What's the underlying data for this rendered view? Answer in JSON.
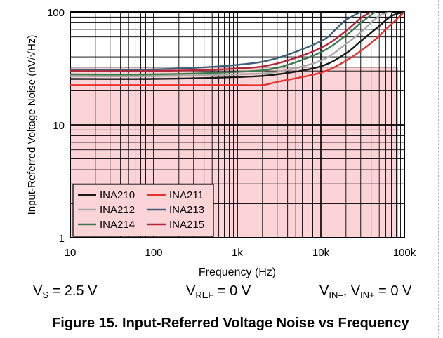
{
  "chart_data": {
    "type": "line",
    "title": "",
    "xlabel": "Frequency (Hz)",
    "ylabel": "Input-Referred Voltage Noise (nV/√Hz)",
    "xscale": "log",
    "yscale": "log",
    "xlim": [
      10,
      100000
    ],
    "ylim": [
      1,
      100
    ],
    "x_ticks": [
      {
        "value": 10,
        "label": "10"
      },
      {
        "value": 100,
        "label": "100"
      },
      {
        "value": 1000,
        "label": "1k"
      },
      {
        "value": 10000,
        "label": "10k"
      },
      {
        "value": 100000,
        "label": "100k"
      }
    ],
    "y_ticks": [
      {
        "value": 1,
        "label": "1"
      },
      {
        "value": 10,
        "label": "10"
      },
      {
        "value": 100,
        "label": "100"
      }
    ],
    "grid": true,
    "legend_position": "bottom-left",
    "series": [
      {
        "name": "INA210",
        "color": "#1a1a1a",
        "x": [
          10,
          100,
          1000,
          3000,
          10000,
          20000,
          30000,
          50000,
          70000,
          100000
        ],
        "y": [
          25.5,
          25.5,
          26.5,
          28,
          33,
          43,
          55,
          75,
          92,
          100
        ]
      },
      {
        "name": "INA211",
        "color": "#e8322e",
        "x": [
          10,
          100,
          1000,
          2000,
          3000,
          10000,
          20000,
          40000,
          60000,
          100000
        ],
        "y": [
          22.5,
          22.5,
          22.5,
          22.5,
          24,
          29,
          37,
          53,
          70,
          100
        ]
      },
      {
        "name": "INA212",
        "color": "#a8a8a8",
        "x": [
          10,
          100,
          1000,
          3000,
          10000,
          20000,
          30000,
          50000,
          70000
        ],
        "y": [
          27,
          27,
          28,
          29.5,
          37,
          52,
          66,
          92,
          100
        ]
      },
      {
        "name": "INA213",
        "color": "#3d6078",
        "x": [
          10,
          100,
          1000,
          3000,
          10000,
          15000,
          20000,
          30000
        ],
        "y": [
          31,
          31,
          34,
          39,
          55,
          70,
          85,
          100
        ]
      },
      {
        "name": "INA214",
        "color": "#3c7a4c",
        "x": [
          10,
          100,
          1000,
          3000,
          10000,
          20000,
          30000,
          45000
        ],
        "y": [
          28,
          28,
          29.5,
          32,
          44,
          62,
          80,
          100
        ]
      },
      {
        "name": "INA215",
        "color": "#b5263a",
        "x": [
          10,
          100,
          1000,
          3000,
          10000,
          20000,
          30000,
          40000
        ],
        "y": [
          30,
          30,
          31.5,
          35,
          48,
          68,
          88,
          100
        ]
      }
    ]
  },
  "conditions": {
    "vs_main": "V",
    "vs_sub": "S",
    "vs_rest": " = 2.5 V",
    "vref_main": "V",
    "vref_sub": "REF",
    "vref_rest": " = 0 V",
    "vin_a_main": "V",
    "vin_a_sub": "IN–",
    "vin_b_main": ", V",
    "vin_b_sub": "IN+",
    "vin_rest": " = 0 V"
  },
  "caption": "Figure 15. Input-Referred Voltage Noise vs Frequency"
}
